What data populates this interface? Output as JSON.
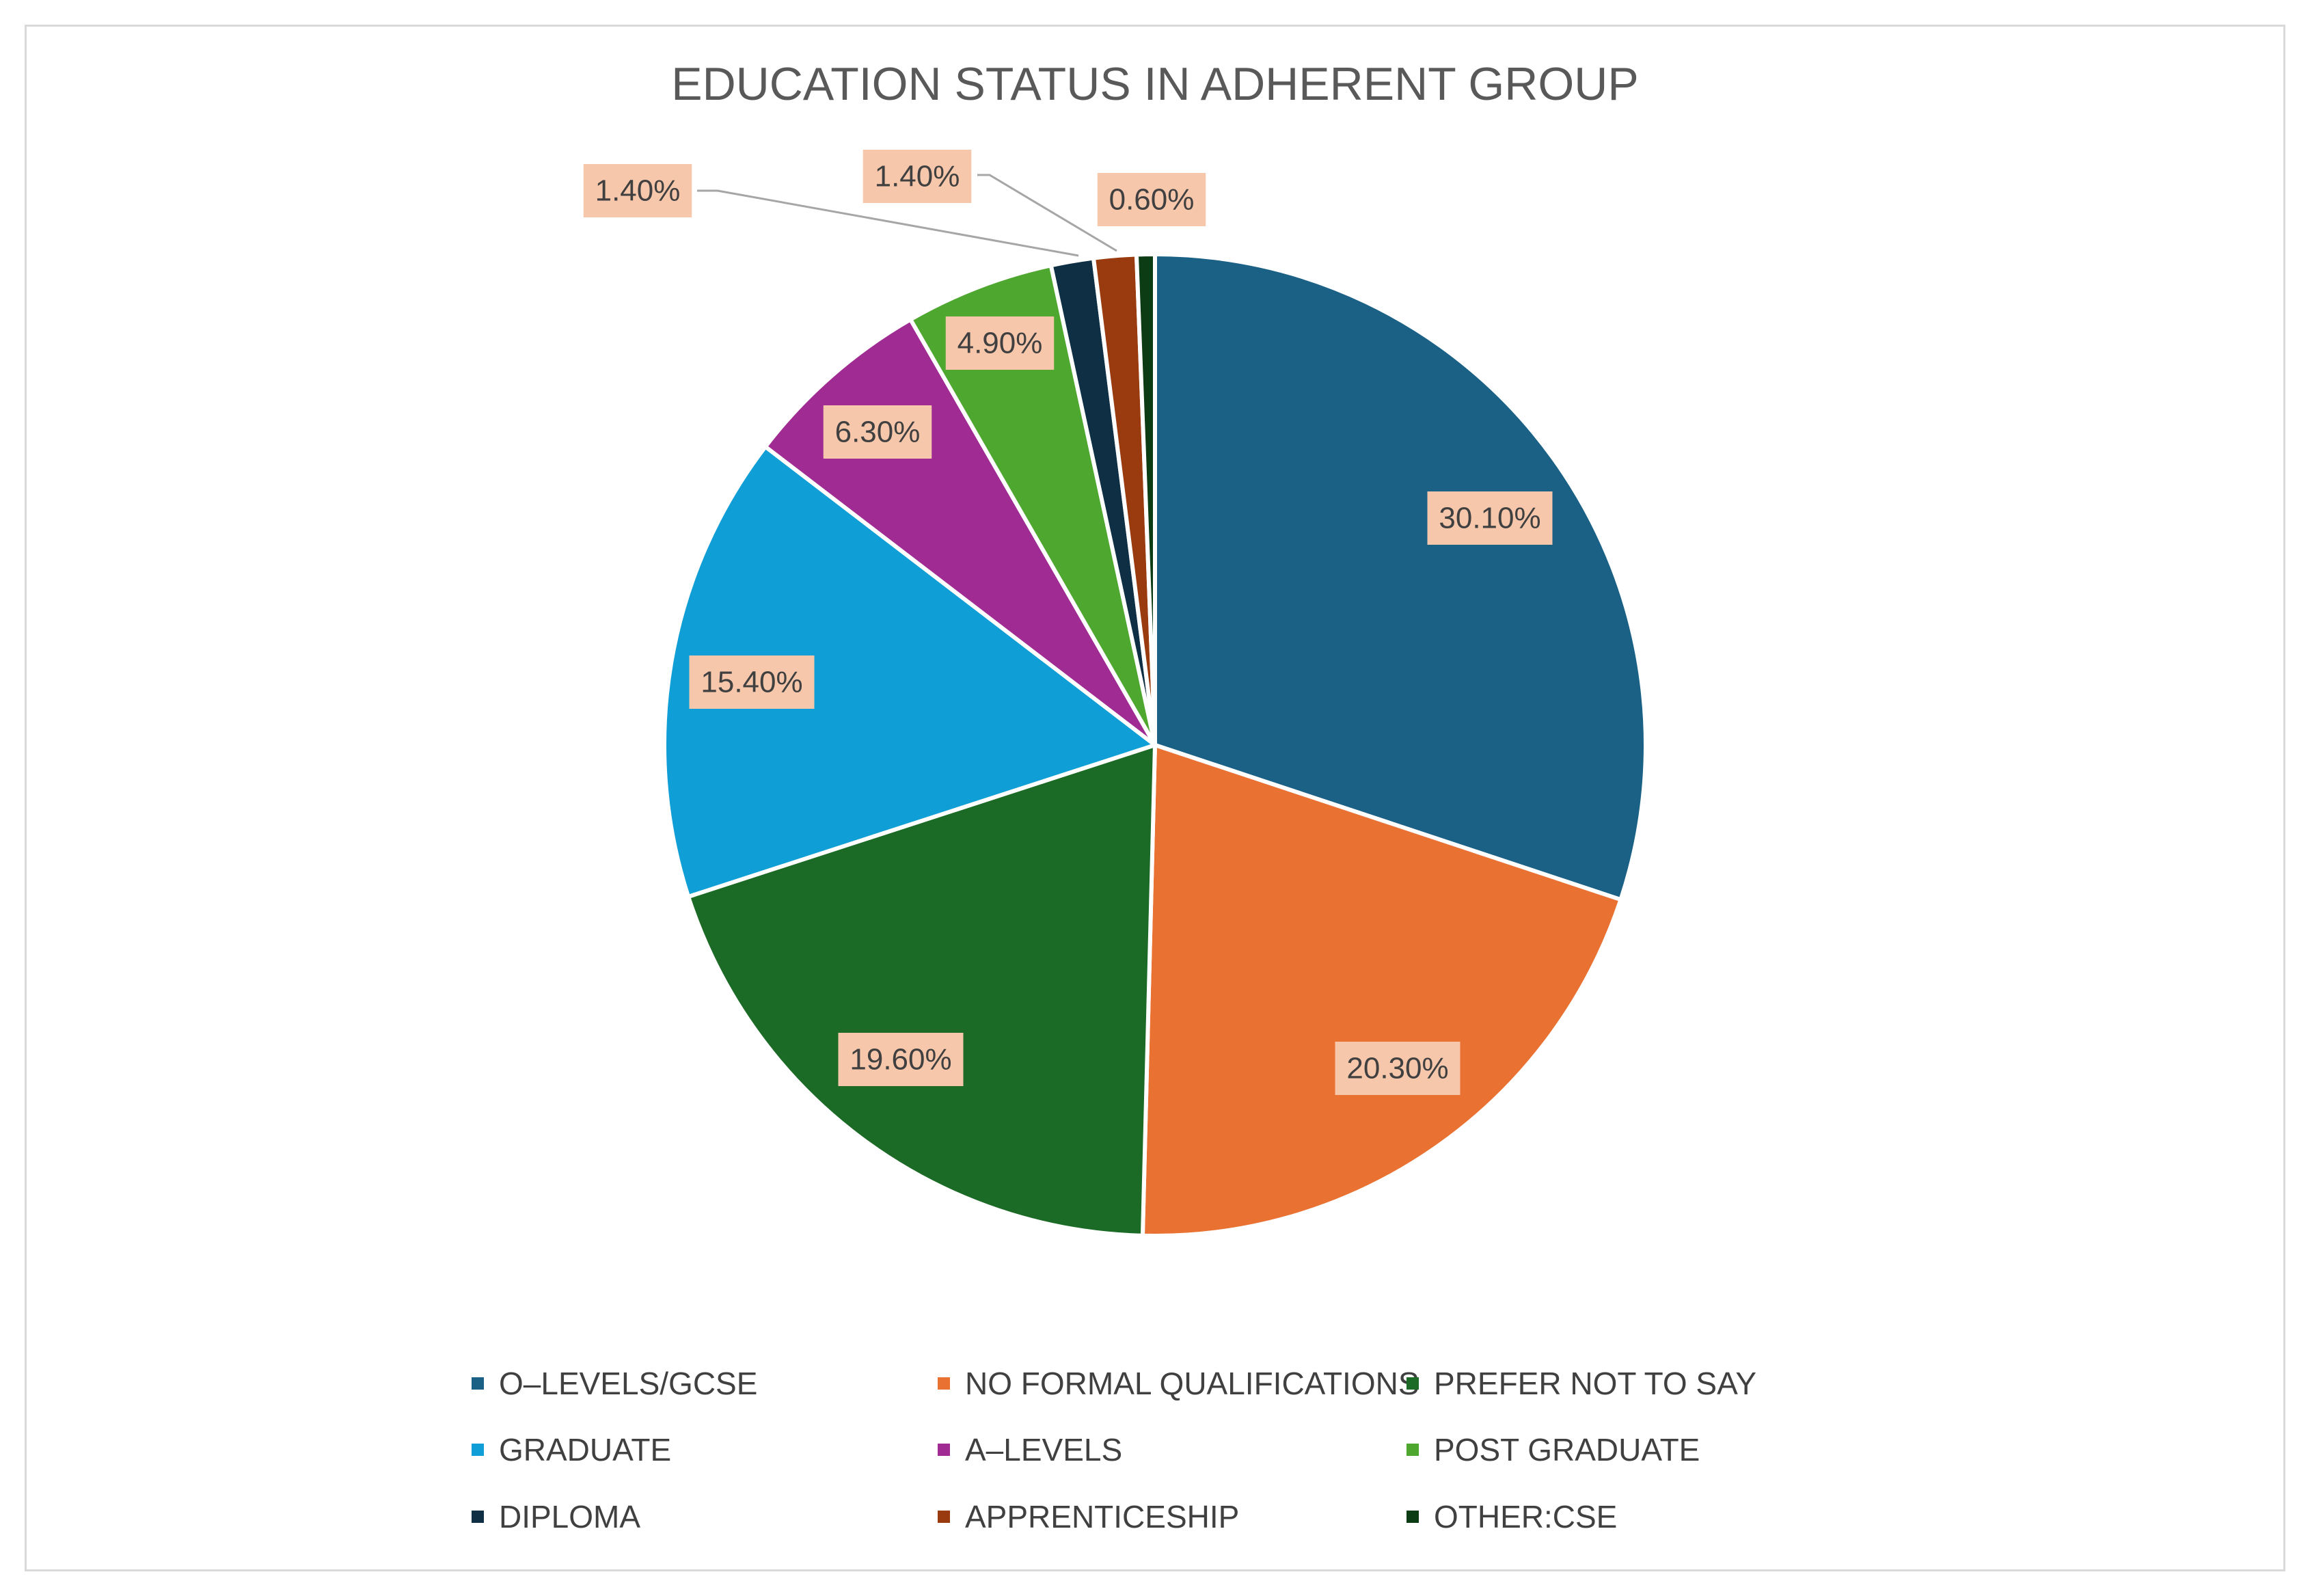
{
  "chart_data": {
    "type": "pie",
    "title": "EDUCATION STATUS IN ADHERENT GROUP",
    "slices": [
      {
        "label": "O–LEVELS/GCSE",
        "value": 30.1,
        "data_label": "30.10%",
        "color": "#1a6185"
      },
      {
        "label": "NO FORMAL QUALIFICATIONS",
        "value": 20.3,
        "data_label": "20.30%",
        "color": "#e97132"
      },
      {
        "label": "PREFER NOT TO SAY",
        "value": 19.6,
        "data_label": "19.60%",
        "color": "#1b6b26"
      },
      {
        "label": "GRADUATE",
        "value": 15.4,
        "data_label": "15.40%",
        "color": "#0f9ed5"
      },
      {
        "label": "A–LEVELS",
        "value": 6.3,
        "data_label": "6.30%",
        "color": "#a02b93"
      },
      {
        "label": "POST GRADUATE",
        "value": 4.9,
        "data_label": "4.90%",
        "color": "#4ea72e"
      },
      {
        "label": "DIPLOMA",
        "value": 1.4,
        "data_label": "1.40%",
        "color": "#0e2f44"
      },
      {
        "label": "APPRENTICESHIP",
        "value": 1.4,
        "data_label": "1.40%",
        "color": "#9a3b0f"
      },
      {
        "label": "OTHER:CSE",
        "value": 0.6,
        "data_label": "0.60%",
        "color": "#0b3c13"
      }
    ],
    "data_label_background": "#f7c7ac",
    "legend_position": "bottom"
  }
}
